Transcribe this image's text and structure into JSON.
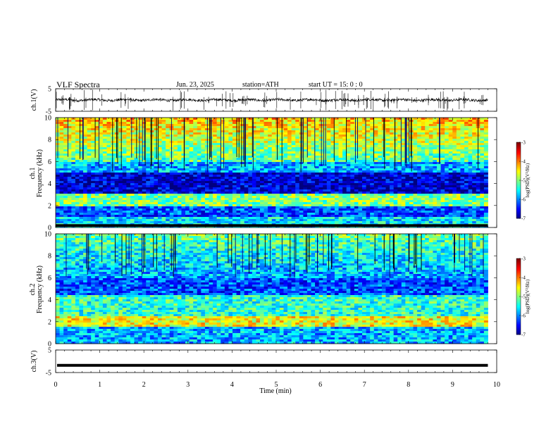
{
  "header": {
    "title": "VLF  Spectra",
    "date": "Jun. 23, 2025",
    "station": "station=ATH",
    "start": "start  UT  =    15: 0   : 0"
  },
  "chart_data": [
    {
      "type": "line",
      "panel": "ch1-waveform",
      "ylabel": "ch.1(V)",
      "ylim": [
        -5,
        5
      ],
      "yticks": [
        "5",
        "-5"
      ],
      "xlim": [
        0,
        10
      ],
      "trace_level": 0
    },
    {
      "type": "heatmap",
      "panel": "ch1-spectrogram",
      "ylabel_line1": "ch.1",
      "ylabel_line2": "Frequency  (kHz)",
      "ylim": [
        0,
        10
      ],
      "yticks": [
        "0",
        "2",
        "4",
        "6",
        "8",
        "10"
      ],
      "xlim": [
        0,
        10
      ],
      "data_end_min": 9.8,
      "colorbar": {
        "label": "log(PSD)(V²/Hz)",
        "range": [
          -7,
          -3
        ],
        "ticks": [
          "-3",
          "-4",
          "-5",
          "-6",
          "-7"
        ]
      }
    },
    {
      "type": "heatmap",
      "panel": "ch2-spectrogram",
      "ylabel_line1": "ch.2",
      "ylabel_line2": "Frequency  (kHz)",
      "ylim": [
        0,
        10
      ],
      "yticks": [
        "0",
        "2",
        "4",
        "6",
        "8",
        "10"
      ],
      "xlim": [
        0,
        10
      ],
      "data_end_min": 9.8,
      "colorbar": {
        "label": "log(PSD)(V²/Hz)",
        "range": [
          -7,
          -3
        ],
        "ticks": [
          "-3",
          "-4",
          "-5",
          "-6",
          "-7"
        ]
      }
    },
    {
      "type": "line",
      "panel": "ch3-waveform",
      "ylabel": "ch.3(V)",
      "ylim": [
        -5,
        5
      ],
      "yticks": [
        "5",
        "-5"
      ],
      "xlim": [
        0,
        10
      ],
      "trace_level": -1.8
    }
  ],
  "xaxis": {
    "label": "Time  (min)",
    "ticks": [
      "0",
      "1",
      "2",
      "3",
      "4",
      "5",
      "6",
      "7",
      "8",
      "9",
      "10"
    ]
  }
}
